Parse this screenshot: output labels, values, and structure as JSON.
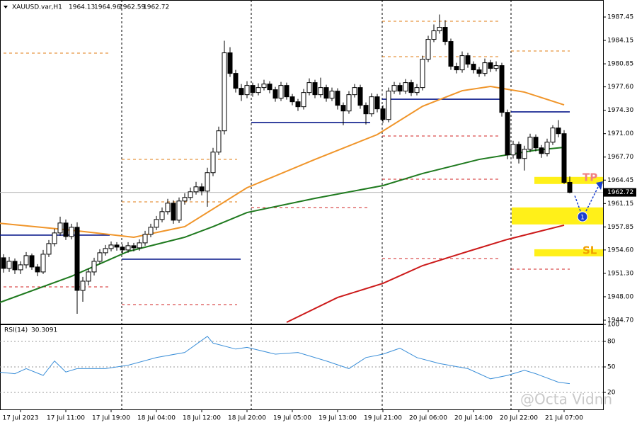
{
  "chart_data": {
    "type": "candlestick",
    "title": "XAUUSD.var,H1",
    "ohlc": [
      [
        1954.0,
        1955.2,
        1952.8,
        1953.5
      ],
      [
        1953.5,
        1954.0,
        1951.4,
        1952.0
      ],
      [
        1952.0,
        1953.6,
        1951.5,
        1953.0
      ],
      [
        1953.0,
        1953.4,
        1951.2,
        1951.8
      ],
      [
        1951.8,
        1953.0,
        1951.2,
        1952.5
      ],
      [
        1952.5,
        1954.3,
        1952.0,
        1953.8
      ],
      [
        1953.8,
        1954.1,
        1951.8,
        1952.2
      ],
      [
        1952.2,
        1952.6,
        1950.9,
        1951.5
      ],
      [
        1951.5,
        1954.6,
        1951.2,
        1954.0
      ],
      [
        1954.0,
        1956.0,
        1953.6,
        1955.5
      ],
      [
        1955.5,
        1957.6,
        1955.1,
        1957.0
      ],
      [
        1957.0,
        1959.3,
        1956.6,
        1958.4
      ],
      [
        1958.4,
        1958.9,
        1956.0,
        1956.5
      ],
      [
        1956.5,
        1958.3,
        1956.1,
        1957.8
      ],
      [
        1957.8,
        1958.5,
        1945.6,
        1948.9
      ],
      [
        1948.9,
        1950.8,
        1947.3,
        1950.2
      ],
      [
        1950.2,
        1952.0,
        1949.6,
        1951.5
      ],
      [
        1951.5,
        1953.5,
        1951.0,
        1953.0
      ],
      [
        1953.0,
        1954.7,
        1952.6,
        1954.2
      ],
      [
        1954.2,
        1955.3,
        1953.8,
        1954.8
      ],
      [
        1954.8,
        1955.8,
        1954.4,
        1955.3
      ],
      [
        1955.3,
        1955.7,
        1954.5,
        1955.0
      ],
      [
        1955.0,
        1955.4,
        1954.1,
        1954.6
      ],
      [
        1954.6,
        1955.7,
        1954.2,
        1955.2
      ],
      [
        1955.2,
        1955.6,
        1954.4,
        1954.9
      ],
      [
        1954.9,
        1956.1,
        1954.5,
        1955.6
      ],
      [
        1955.6,
        1957.3,
        1955.2,
        1956.8
      ],
      [
        1956.8,
        1958.3,
        1956.4,
        1957.8
      ],
      [
        1957.8,
        1959.4,
        1957.4,
        1958.9
      ],
      [
        1958.9,
        1960.6,
        1958.5,
        1960.0
      ],
      [
        1960.0,
        1961.8,
        1959.6,
        1961.2
      ],
      [
        1961.2,
        1961.6,
        1958.3,
        1958.8
      ],
      [
        1958.8,
        1962.0,
        1958.4,
        1961.5
      ],
      [
        1961.5,
        1962.6,
        1961.0,
        1962.0
      ],
      [
        1962.0,
        1963.4,
        1961.6,
        1962.8
      ],
      [
        1962.8,
        1964.2,
        1962.4,
        1963.5
      ],
      [
        1963.5,
        1964.0,
        1962.3,
        1962.9
      ],
      [
        1962.9,
        1966.2,
        1960.7,
        1965.5
      ],
      [
        1965.5,
        1969.0,
        1965.0,
        1968.4
      ],
      [
        1968.4,
        1972.0,
        1968.0,
        1971.4
      ],
      [
        1971.4,
        1984.1,
        1970.9,
        1982.4
      ],
      [
        1982.4,
        1983.2,
        1979.0,
        1979.5
      ],
      [
        1979.5,
        1980.0,
        1976.8,
        1977.4
      ],
      [
        1977.4,
        1978.0,
        1975.6,
        1976.5
      ],
      [
        1976.5,
        1978.4,
        1976.0,
        1977.8
      ],
      [
        1977.8,
        1978.2,
        1976.2,
        1976.8
      ],
      [
        1976.8,
        1978.1,
        1976.4,
        1977.5
      ],
      [
        1977.5,
        1978.6,
        1977.1,
        1978.0
      ],
      [
        1978.0,
        1978.4,
        1976.7,
        1977.2
      ],
      [
        1977.2,
        1977.6,
        1975.5,
        1976.0
      ],
      [
        1976.0,
        1978.3,
        1975.6,
        1977.8
      ],
      [
        1977.8,
        1978.2,
        1975.8,
        1976.2
      ],
      [
        1976.2,
        1976.6,
        1975.0,
        1975.5
      ],
      [
        1975.5,
        1975.9,
        1974.2,
        1974.8
      ],
      [
        1974.8,
        1977.3,
        1974.4,
        1976.8
      ],
      [
        1976.8,
        1978.8,
        1976.4,
        1978.2
      ],
      [
        1978.2,
        1978.6,
        1976.0,
        1976.5
      ],
      [
        1976.5,
        1978.9,
        1976.1,
        1977.5
      ],
      [
        1977.5,
        1977.9,
        1975.5,
        1976.0
      ],
      [
        1976.0,
        1977.5,
        1975.6,
        1977.0
      ],
      [
        1977.0,
        1977.4,
        1974.4,
        1975.0
      ],
      [
        1975.0,
        1975.4,
        1972.2,
        1974.2
      ],
      [
        1974.2,
        1977.0,
        1973.8,
        1976.5
      ],
      [
        1976.5,
        1978.0,
        1976.1,
        1977.5
      ],
      [
        1977.5,
        1977.9,
        1974.5,
        1975.0
      ],
      [
        1975.0,
        1975.4,
        1972.3,
        1973.8
      ],
      [
        1973.8,
        1976.7,
        1973.4,
        1976.2
      ],
      [
        1976.2,
        1976.6,
        1974.0,
        1974.5
      ],
      [
        1974.5,
        1975.0,
        1972.5,
        1973.0
      ],
      [
        1973.0,
        1977.5,
        1972.6,
        1977.0
      ],
      [
        1977.0,
        1978.3,
        1976.6,
        1977.8
      ],
      [
        1977.8,
        1978.2,
        1976.5,
        1977.0
      ],
      [
        1977.0,
        1978.7,
        1976.6,
        1978.2
      ],
      [
        1978.2,
        1978.6,
        1976.3,
        1976.8
      ],
      [
        1976.8,
        1978.0,
        1976.4,
        1977.5
      ],
      [
        1977.5,
        1982.0,
        1977.1,
        1981.5
      ],
      [
        1981.5,
        1984.8,
        1981.1,
        1984.3
      ],
      [
        1984.3,
        1986.4,
        1983.9,
        1985.5
      ],
      [
        1985.5,
        1987.8,
        1985.1,
        1986.0
      ],
      [
        1986.0,
        1987.0,
        1983.5,
        1984.0
      ],
      [
        1984.0,
        1984.4,
        1980.0,
        1980.5
      ],
      [
        1980.5,
        1981.0,
        1979.5,
        1980.0
      ],
      [
        1980.0,
        1982.6,
        1979.6,
        1982.0
      ],
      [
        1982.0,
        1982.4,
        1980.3,
        1980.8
      ],
      [
        1980.8,
        1981.2,
        1979.5,
        1980.0
      ],
      [
        1980.0,
        1980.4,
        1979.0,
        1979.5
      ],
      [
        1979.5,
        1981.6,
        1979.1,
        1981.0
      ],
      [
        1981.0,
        1981.4,
        1979.7,
        1980.2
      ],
      [
        1980.2,
        1981.2,
        1979.8,
        1980.6
      ],
      [
        1980.6,
        1981.0,
        1973.4,
        1974.0
      ],
      [
        1974.0,
        1974.4,
        1967.4,
        1968.0
      ],
      [
        1968.0,
        1970.0,
        1967.5,
        1969.5
      ],
      [
        1969.5,
        1969.9,
        1966.8,
        1967.5
      ],
      [
        1967.5,
        1969.3,
        1965.8,
        1968.8
      ],
      [
        1968.8,
        1971.0,
        1968.4,
        1970.5
      ],
      [
        1970.5,
        1970.9,
        1968.5,
        1969.0
      ],
      [
        1969.0,
        1969.4,
        1967.6,
        1968.2
      ],
      [
        1968.2,
        1970.3,
        1967.8,
        1969.8
      ],
      [
        1969.8,
        1972.2,
        1969.4,
        1971.8
      ],
      [
        1971.8,
        1972.9,
        1970.5,
        1971.0
      ],
      [
        1971.0,
        1971.5,
        1963.9,
        1964.13
      ],
      [
        1964.13,
        1964.96,
        1962.59,
        1962.72
      ]
    ],
    "ylim": [
      1944.2,
      1989.35
    ],
    "yticks": [
      1987.45,
      1984.15,
      1980.85,
      {
        "value": 1977.6,
        "label": "1977.60"
      },
      {
        "value": 1974.3,
        "label": "1974.30"
      },
      {
        "value": 1971.0,
        "label": "1971.00"
      },
      {
        "value": 1967.7,
        "label": "1967.70"
      },
      1964.45,
      1961.15,
      1957.85,
      {
        "value": 1954.6,
        "label": "1954.60"
      },
      {
        "value": 1951.3,
        "label": "1951.30"
      },
      {
        "value": 1948.0,
        "label": "1948.00"
      },
      {
        "value": 1944.7,
        "label": "1944.70"
      }
    ],
    "xticks": [
      {
        "value": 4,
        "label": "17 Jul 2023"
      },
      {
        "value": 12,
        "label": "17 Jul 11:00"
      },
      {
        "value": 20,
        "label": "17 Jul 19:00"
      },
      {
        "value": 28,
        "label": "18 Jul 04:00"
      },
      {
        "value": 36,
        "label": "18 Jul 12:00"
      },
      {
        "value": 44,
        "label": "18 Jul 20:00"
      },
      {
        "value": 52,
        "label": "19 Jul 05:00"
      },
      {
        "value": 60,
        "label": "19 Jul 13:00"
      },
      {
        "value": 68,
        "label": "19 Jul 21:00"
      },
      {
        "value": 76,
        "label": "20 Jul 06:00"
      },
      {
        "value": 84,
        "label": "20 Jul 14:00"
      },
      {
        "value": 92,
        "label": "20 Jul 22:00"
      },
      {
        "value": 100,
        "label": "21 Jul 07:00"
      }
    ],
    "ma": [
      {
        "color": "#f0952a",
        "x": [
          0,
          13,
          24,
          33,
          44,
          56,
          67,
          75,
          82,
          87,
          93,
          100
        ],
        "values": [
          1958.39,
          1957.39,
          1956.39,
          1957.89,
          1963.38,
          1967.37,
          1970.87,
          1974.86,
          1977.06,
          1977.66,
          1976.86,
          1975.06
        ]
      },
      {
        "color": "#1f7a1f",
        "x": [
          0,
          13,
          23,
          33,
          38,
          44,
          56,
          68,
          75,
          85,
          95,
          100
        ],
        "values": [
          1947.1,
          1950.89,
          1954.39,
          1956.39,
          1957.89,
          1959.88,
          1961.88,
          1963.68,
          1965.38,
          1967.37,
          1968.67,
          1969.07
        ]
      },
      {
        "color": "#cc1a1a",
        "x": [
          51,
          60,
          68,
          75,
          83,
          90,
          100
        ],
        "values": [
          1944.4,
          1947.9,
          1949.89,
          1952.39,
          1954.39,
          1956.09,
          1958.09
        ]
      }
    ],
    "levels": [
      {
        "price": 1956.69,
        "color": "#0a1a8c",
        "dash": false
      },
      {
        "price": 1953.3,
        "color": "#0a1a8c",
        "dash": false
      },
      {
        "price": 1972.57,
        "color": "#0a1a8c",
        "dash": false
      },
      {
        "price": 1975.86,
        "color": "#0a1a8c",
        "dash": false
      },
      {
        "price": 1974.07,
        "color": "#0a1a8c",
        "dash": false
      },
      {
        "price": 1982.36,
        "color": "#e07b10",
        "dash": true
      },
      {
        "price": 1967.37,
        "color": "#e07b10",
        "dash": true
      },
      {
        "price": 1961.38,
        "color": "#e07b10",
        "dash": true
      },
      {
        "price": 1986.85,
        "color": "#e07b10",
        "dash": true
      },
      {
        "price": 1981.86,
        "color": "#e07b10",
        "dash": true
      },
      {
        "price": 1982.66,
        "color": "#e07b10",
        "dash": true
      },
      {
        "price": 1949.4,
        "color": "#d02020",
        "dash": true
      },
      {
        "price": 1946.9,
        "color": "#d02020",
        "dash": true
      },
      {
        "price": 1960.58,
        "color": "#d02020",
        "dash": true
      },
      {
        "price": 1970.67,
        "color": "#d02020",
        "dash": true
      },
      {
        "price": 1964.58,
        "color": "#d02020",
        "dash": true
      },
      {
        "price": 1953.39,
        "color": "#d02020",
        "dash": true
      },
      {
        "price": 1951.89,
        "color": "#d02020",
        "dash": true
      }
    ],
    "zones": [
      [
        1963.9,
        1964.9
      ],
      [
        1958.2,
        1960.6
      ],
      [
        1953.7,
        1954.7
      ]
    ],
    "annotations": [
      "TP",
      "SL",
      "1"
    ],
    "rsi": {
      "label": "RSI(14)",
      "last": 30.3091,
      "color": "#3a8ed8",
      "ylim": [
        0,
        100
      ],
      "yticks": [
        100,
        80,
        50,
        20
      ],
      "x": [
        0,
        3,
        5,
        8,
        10,
        12,
        14,
        19,
        23,
        28,
        33,
        37,
        38,
        42,
        44,
        49,
        53,
        58,
        62,
        65,
        68,
        71,
        74,
        78,
        83,
        87,
        90,
        93,
        95,
        99,
        101
      ],
      "values": [
        44,
        42,
        48,
        40,
        57,
        44,
        48,
        48,
        52,
        61,
        67,
        86,
        78,
        71,
        73,
        65,
        67,
        57,
        48,
        61,
        65,
        72,
        61,
        54,
        48,
        36,
        40,
        46,
        42,
        32,
        30.3
      ]
    },
    "watermark": "@Octa Vidnn"
  }
}
